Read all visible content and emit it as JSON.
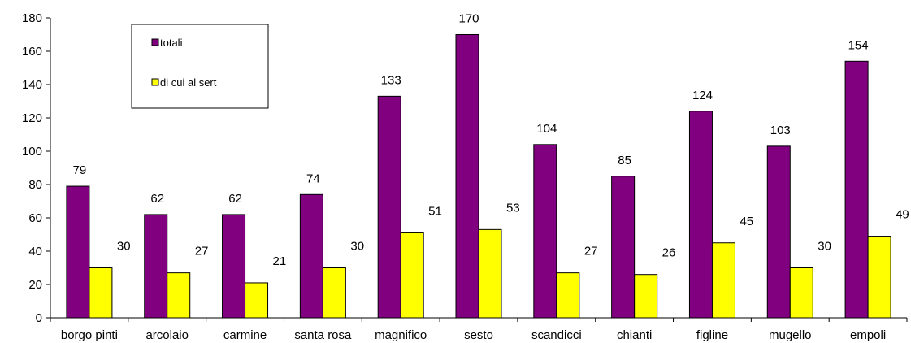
{
  "chart_data": {
    "type": "bar",
    "categories": [
      "borgo pinti",
      "arcolaio",
      "carmine",
      "santa rosa",
      "magnifico",
      "sesto",
      "scandicci",
      "chianti",
      "figline",
      "mugello",
      "empoli"
    ],
    "series": [
      {
        "name": "totali",
        "color": "#800080",
        "values": [
          79,
          62,
          62,
          74,
          133,
          170,
          104,
          85,
          124,
          103,
          154
        ]
      },
      {
        "name": "di cui al sert",
        "color": "#ffff00",
        "values": [
          30,
          27,
          21,
          30,
          51,
          53,
          27,
          26,
          45,
          30,
          49
        ]
      }
    ],
    "ylim": [
      0,
      180
    ],
    "yticks": [
      0,
      20,
      40,
      60,
      80,
      100,
      120,
      140,
      160,
      180
    ],
    "grid": false,
    "legend": "top-left"
  }
}
